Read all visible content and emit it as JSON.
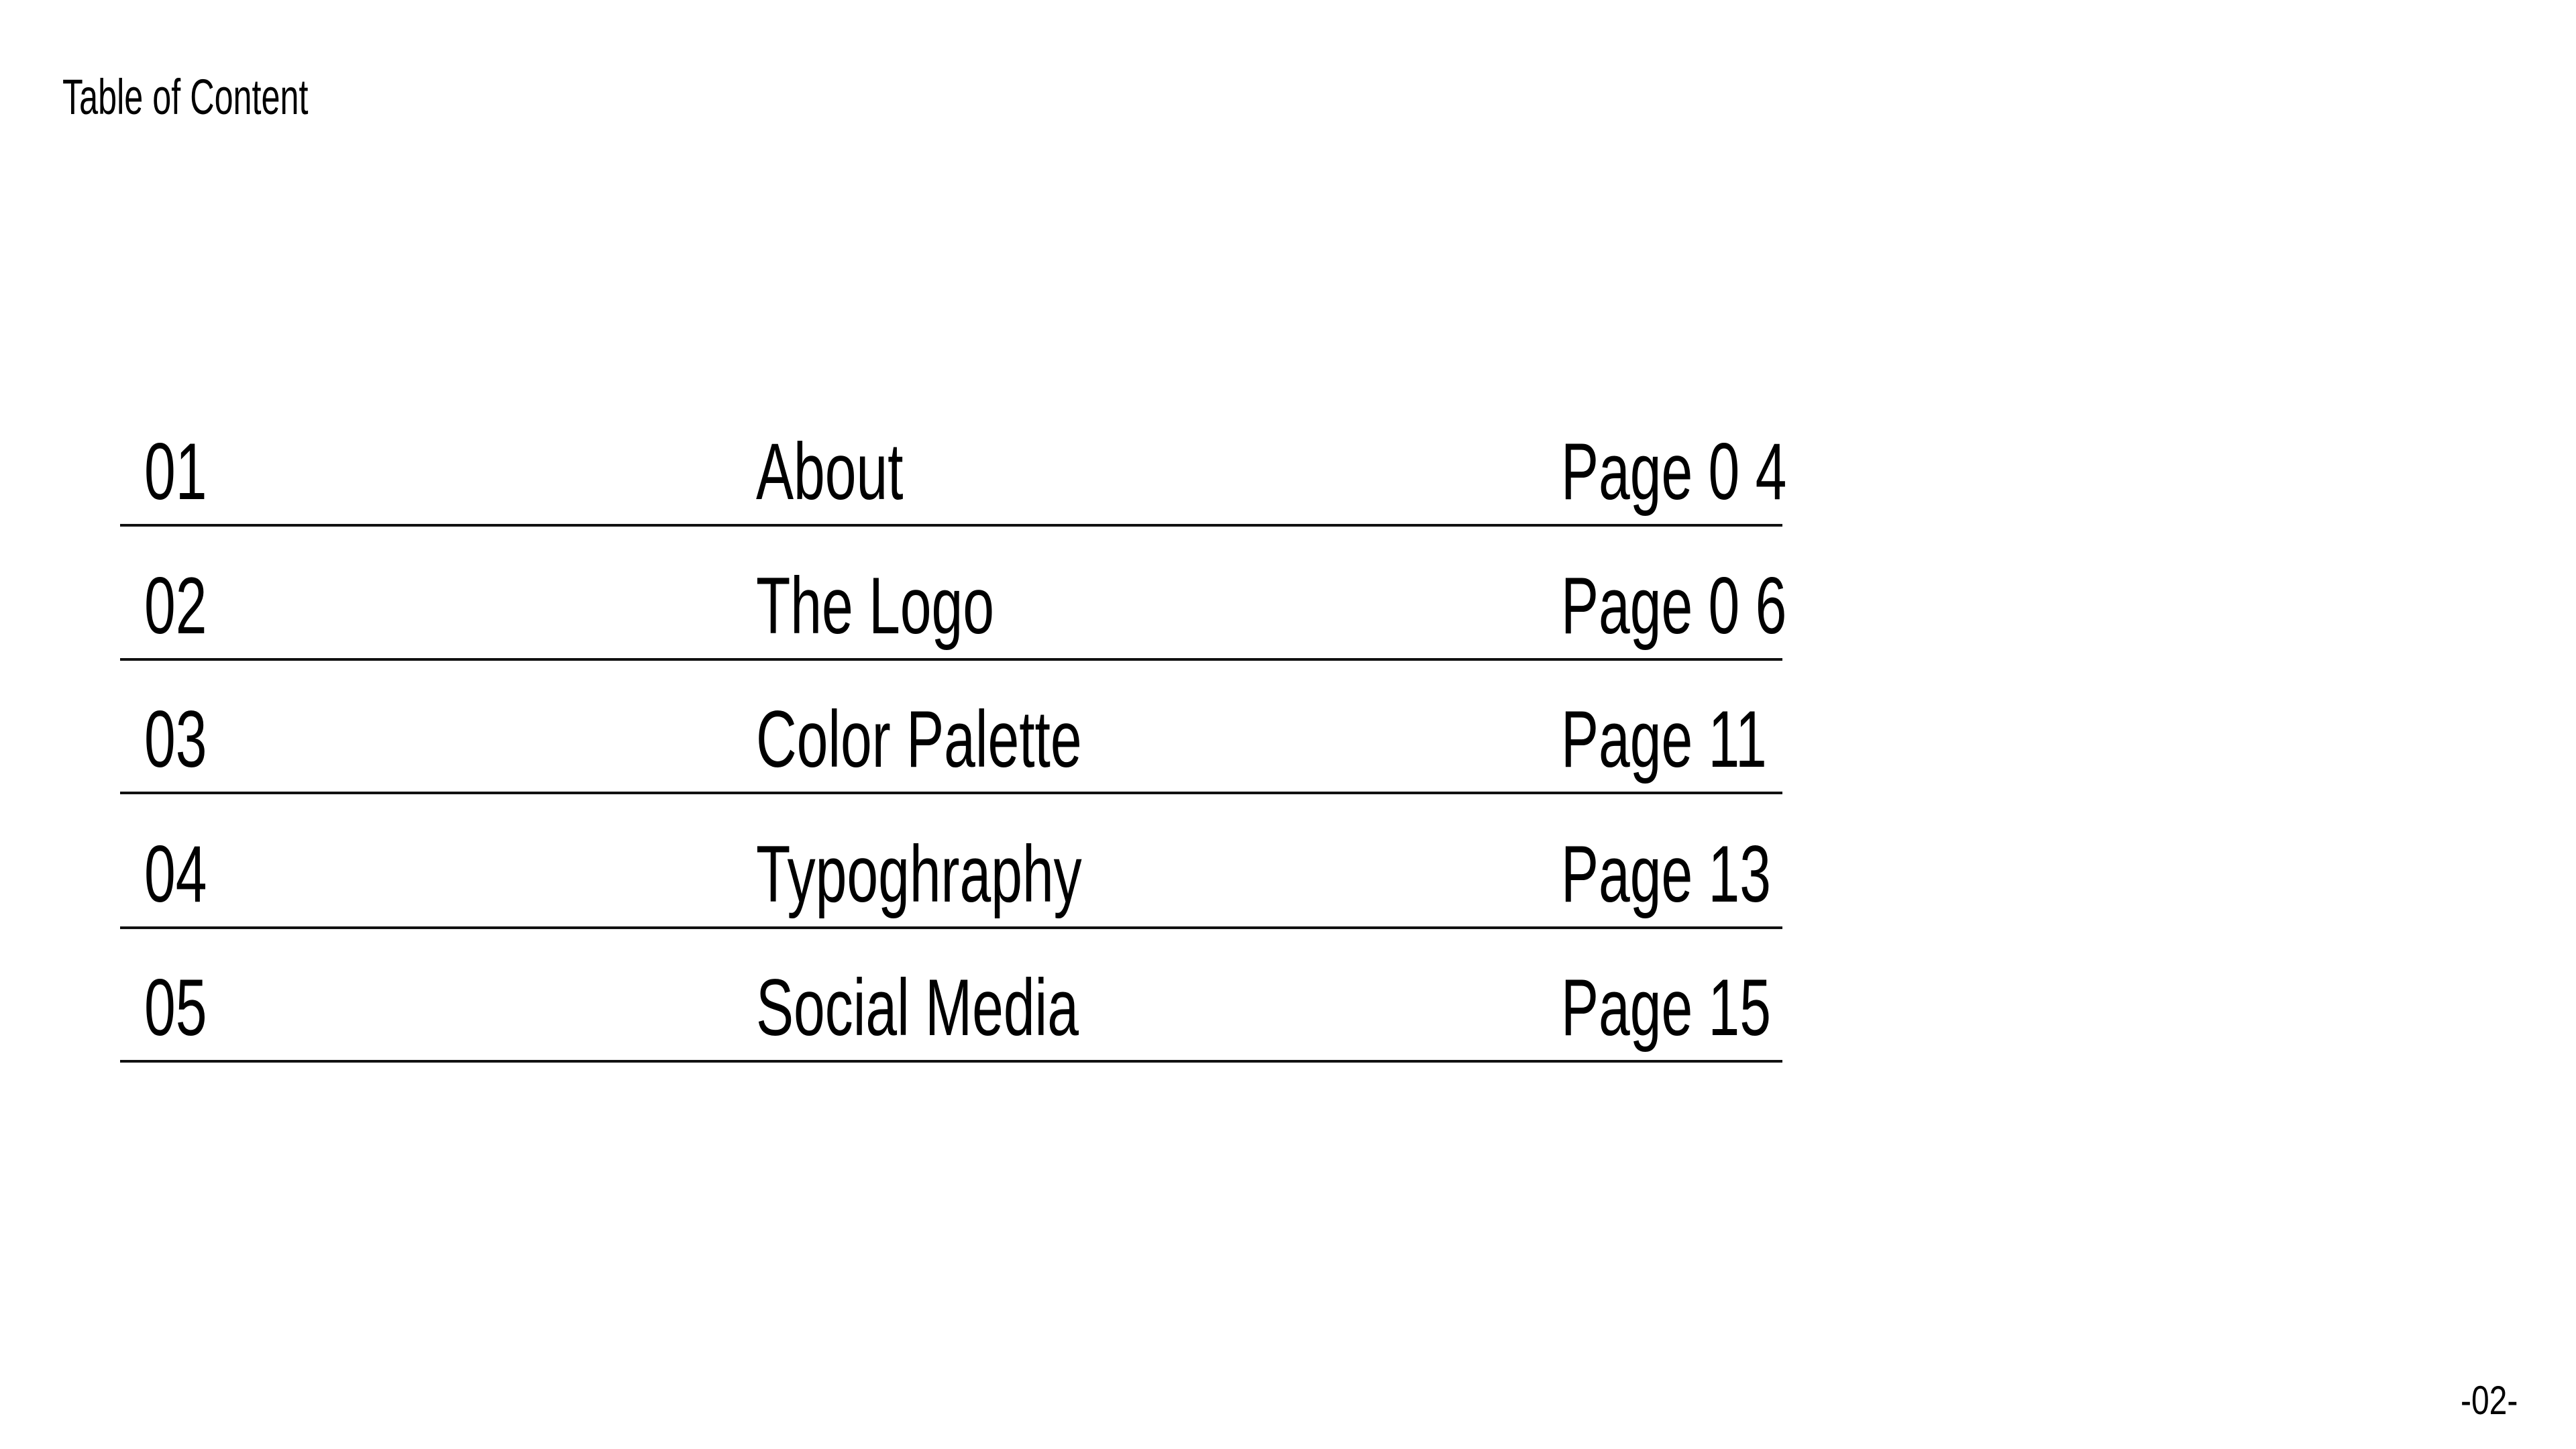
{
  "title": "Table of Content",
  "toc": [
    {
      "number": "01",
      "topic": "About",
      "page": "Page 0 4"
    },
    {
      "number": "02",
      "topic": "The Logo",
      "page": "Page 0 6"
    },
    {
      "number": "03",
      "topic": "Color Palette",
      "page": "Page 11"
    },
    {
      "number": "04",
      "topic": "Typoghraphy",
      "page": "Page 13"
    },
    {
      "number": "05",
      "topic": "Social Media",
      "page": "Page 15"
    }
  ],
  "page_number": "-02-"
}
